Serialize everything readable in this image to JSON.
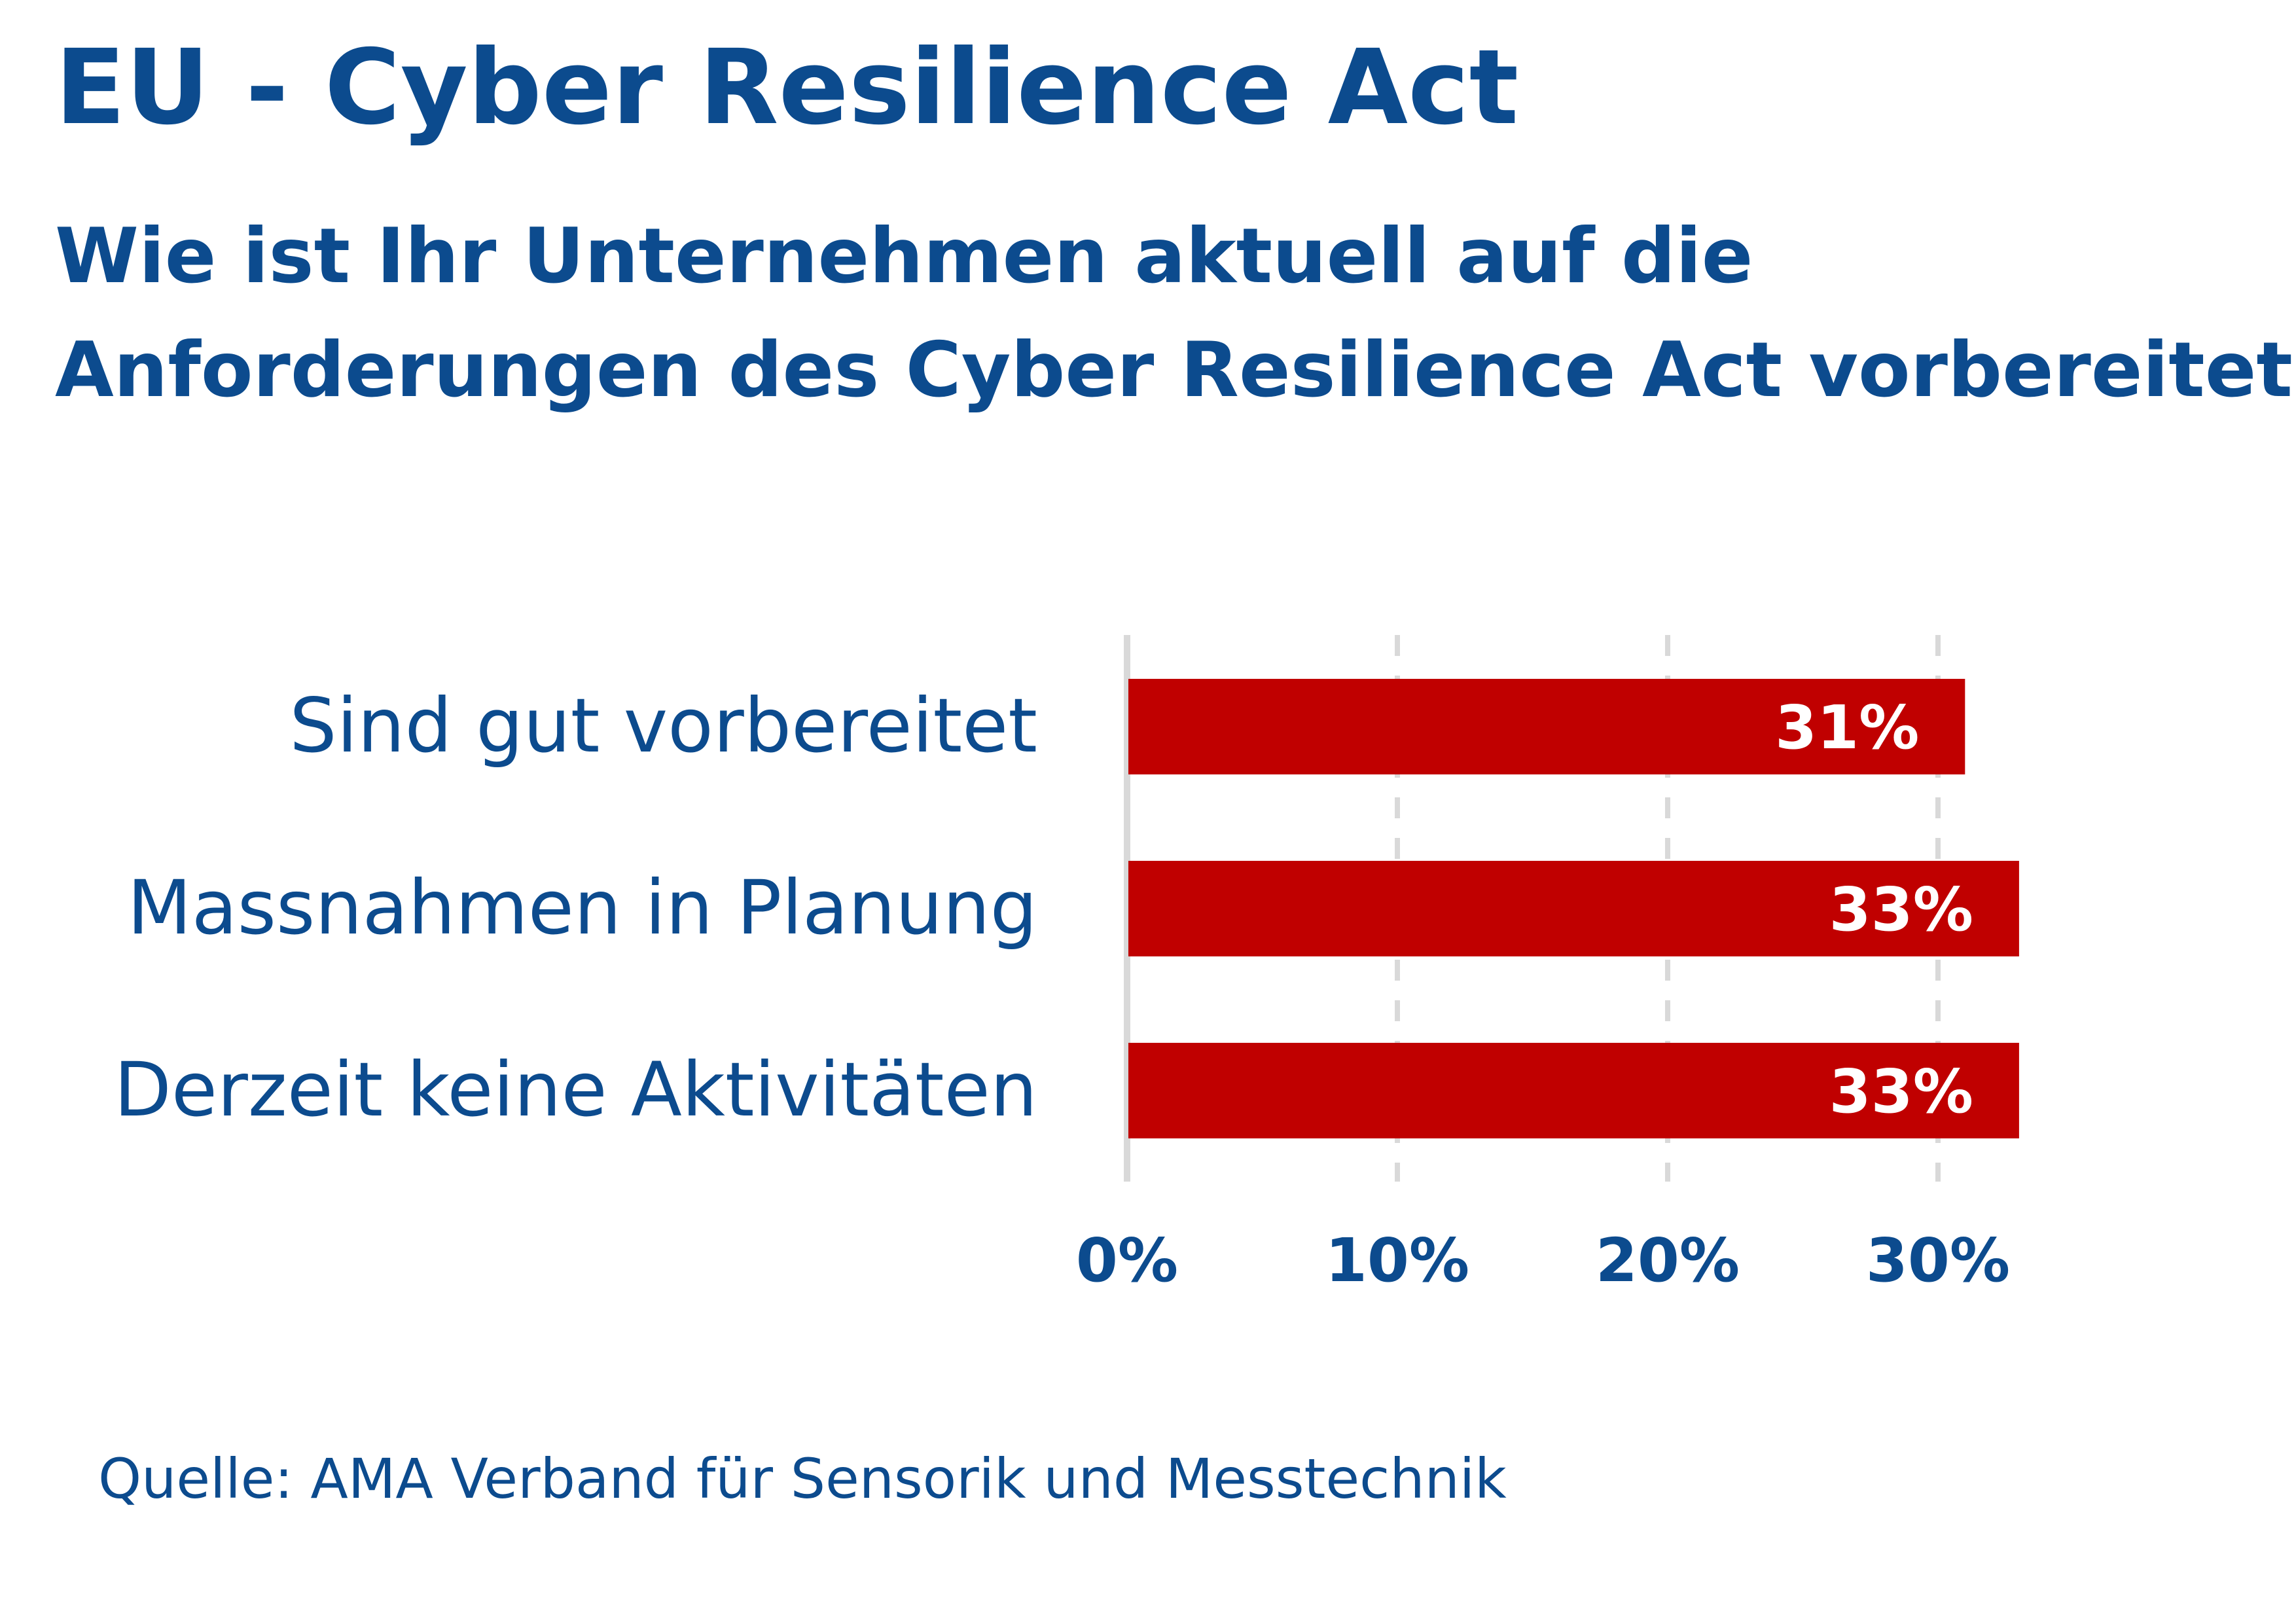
{
  "chart_data": {
    "type": "bar",
    "orientation": "horizontal",
    "title": "EU - Cyber Resilience Act",
    "subtitle_lines": [
      "Wie ist Ihr Unternehmen aktuell auf die",
      "Anforderungen des Cyber Resilience Act vorbereitet?"
    ],
    "categories": [
      "Sind gut vorbereitet",
      "Massnahmen in Planung",
      "Derzeit keine Aktivitäten"
    ],
    "values": [
      31,
      33,
      33
    ],
    "value_labels": [
      "31%",
      "33%",
      "33%"
    ],
    "xticks": [
      "0%",
      "10%",
      "20%",
      "30%"
    ],
    "xtick_values": [
      0,
      10,
      20,
      30
    ],
    "xlim": [
      0,
      30
    ],
    "grid": "vertical dashed",
    "bar_color": "#c00000",
    "text_color": "#0c4b8e",
    "grid_color": "#d9d9d9"
  },
  "source": "Quelle: AMA Verband für Sensorik und Messtechnik"
}
